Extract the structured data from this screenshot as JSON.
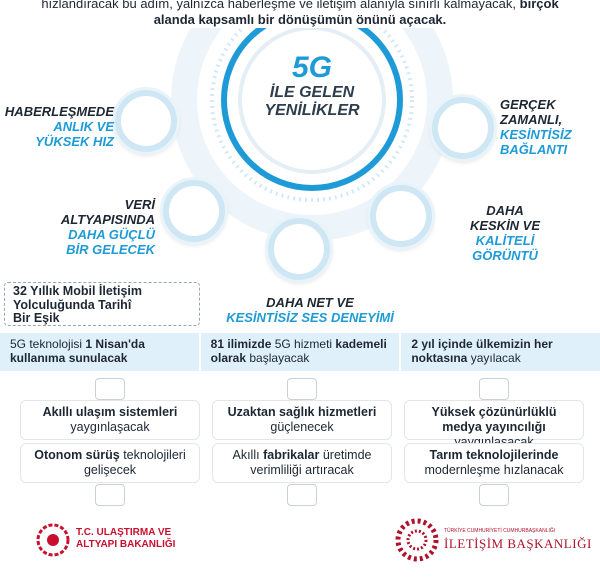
{
  "header": {
    "lines": [
      [
        {
          "t": "hızlandıracak bu adım, yalnızca haberleşme ve iletişim alanıyla sınırlı kalmayacak,",
          "b": false
        },
        {
          "t": "birçok",
          "b": true
        }
      ],
      [
        {
          "t": "alanda kapsamlı bir dönüşümün önünü açacak.",
          "b": true
        }
      ]
    ]
  },
  "center": {
    "big": "5G",
    "line1": "İLE GELEN",
    "line2": "YENİLİKLER"
  },
  "features": [
    {
      "dark": [
        "HABERLEŞMEDE"
      ],
      "blue": [
        "ANLIK VE",
        "YÜKSEK HIZ"
      ]
    },
    {
      "dark": [
        "GERÇEK",
        "ZAMANLI,"
      ],
      "blue": [
        "KESİNTİSİZ",
        "BAĞLANTI"
      ]
    },
    {
      "dark": [
        "VERİ",
        "ALTYAPISINDA"
      ],
      "blue": [
        "DAHA GÜÇLÜ",
        "BİR GELECEK"
      ]
    },
    {
      "dark": [
        "DAHA",
        "KESKİN VE"
      ],
      "blue": [
        "KALİTELİ",
        "GÖRÜNTÜ"
      ]
    },
    {
      "dark": [
        "DAHA NET VE"
      ],
      "blue": [
        "KESİNTİSİZ SES DENEYİMİ"
      ]
    }
  ],
  "milestone": [
    "32 Yıllık Mobil İletişim",
    "Yolculuğunda Tarihî",
    "Bir Eşik"
  ],
  "timeline": [
    [
      {
        "t": "5G teknolojisi",
        "b": false
      },
      {
        "t": "1 Nisan'da kullanıma sunulacak",
        "b": true
      }
    ],
    [
      {
        "t": "81 ilimizde",
        "b": true
      },
      {
        "t": "5G hizmeti",
        "b": false
      },
      {
        "t": "kademeli olarak",
        "b": true
      },
      {
        "t": "başlayacak",
        "b": false
      }
    ],
    [
      {
        "t": "2 yıl içinde ülkemizin her noktasına",
        "b": true
      },
      {
        "t": "yayılacak",
        "b": false
      }
    ]
  ],
  "cards": [
    [
      {
        "t": "Akıllı ulaşım sistemleri",
        "b": true
      },
      {
        "t": "yaygınlaşacak",
        "b": false
      }
    ],
    [
      {
        "t": "Uzaktan sağlık hizmetleri",
        "b": true
      },
      {
        "t": "güçlenecek",
        "b": false
      }
    ],
    [
      {
        "t": "Yüksek çözünürlüklü medya yayıncılığı",
        "b": true
      },
      {
        "t": "yaygınlaşacak",
        "b": false
      }
    ],
    [
      {
        "t": "Otonom sürüş",
        "b": true
      },
      {
        "t": "teknolojileri gelişecek",
        "b": false
      }
    ],
    [
      {
        "t": "Akıllı",
        "b": false
      },
      {
        "t": "fabrikalar",
        "b": true
      },
      {
        "t": "üretimde verimliliği artıracak",
        "b": false
      }
    ],
    [
      {
        "t": "Tarım teknolojilerinde",
        "b": true
      },
      {
        "t": "modernleşme hızlanacak",
        "b": false
      }
    ]
  ],
  "footer": {
    "left": [
      "T.C. ULAŞTIRMA VE",
      "ALTYAPI BAKANLIĞI"
    ],
    "right_small": "TÜRKİYE CUMHURİYETİ CUMHURBAŞKANLIĞI",
    "right": "İLETİŞİM BAŞKANLIĞI"
  }
}
